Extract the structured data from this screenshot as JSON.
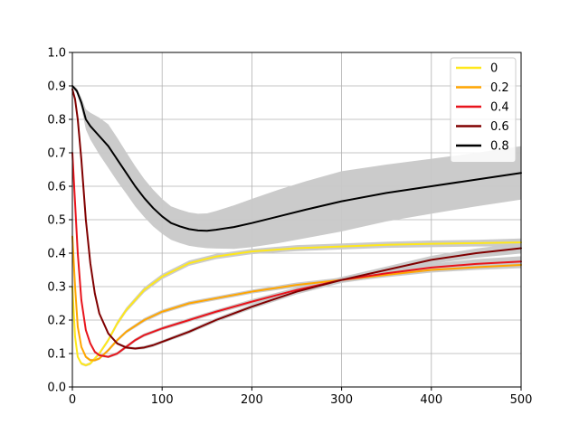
{
  "chart_data": {
    "type": "line",
    "title": "",
    "xlabel": "",
    "ylabel": "",
    "xlim": [
      0,
      500
    ],
    "ylim": [
      0,
      1.0
    ],
    "grid": true,
    "xticks": [
      0,
      100,
      200,
      300,
      400,
      500
    ],
    "xtick_labels": [
      "0",
      "100",
      "200",
      "300",
      "400",
      "500"
    ],
    "yticks": [
      0.0,
      0.1,
      0.2,
      0.3,
      0.4,
      0.5,
      0.6,
      0.7,
      0.8,
      0.9,
      1.0
    ],
    "ytick_labels": [
      "0.0",
      "0.1",
      "0.2",
      "0.3",
      "0.4",
      "0.5",
      "0.6",
      "0.7",
      "0.8",
      "0.9",
      "1.0"
    ],
    "legend_position": "top-right",
    "series": [
      {
        "name": "0",
        "color": "#ffe81a",
        "band": true,
        "x": [
          0,
          3,
          6,
          10,
          15,
          20,
          30,
          40,
          50,
          60,
          80,
          100,
          130,
          160,
          200,
          250,
          300,
          350,
          400,
          450,
          500
        ],
        "y": [
          0.3,
          0.15,
          0.09,
          0.07,
          0.065,
          0.07,
          0.1,
          0.14,
          0.19,
          0.23,
          0.29,
          0.33,
          0.37,
          0.39,
          0.405,
          0.415,
          0.42,
          0.425,
          0.428,
          0.43,
          0.432
        ],
        "band_halfwidth": [
          0.004,
          0.004,
          0.004,
          0.004,
          0.004,
          0.004,
          0.005,
          0.006,
          0.007,
          0.007,
          0.008,
          0.008,
          0.008,
          0.008,
          0.008,
          0.009,
          0.009,
          0.009,
          0.01,
          0.01,
          0.012
        ]
      },
      {
        "name": "0.2",
        "color": "#ffa500",
        "band": true,
        "x": [
          0,
          3,
          6,
          10,
          15,
          20,
          25,
          30,
          40,
          50,
          60,
          80,
          100,
          130,
          160,
          200,
          250,
          300,
          350,
          400,
          450,
          500
        ],
        "y": [
          0.45,
          0.3,
          0.18,
          0.12,
          0.09,
          0.08,
          0.08,
          0.085,
          0.11,
          0.14,
          0.165,
          0.2,
          0.225,
          0.25,
          0.265,
          0.285,
          0.305,
          0.32,
          0.335,
          0.35,
          0.358,
          0.365
        ],
        "band_halfwidth": [
          0.004,
          0.004,
          0.004,
          0.004,
          0.004,
          0.004,
          0.004,
          0.004,
          0.005,
          0.005,
          0.005,
          0.006,
          0.006,
          0.006,
          0.006,
          0.006,
          0.007,
          0.007,
          0.007,
          0.008,
          0.008,
          0.01
        ]
      },
      {
        "name": "0.4",
        "color": "#e8141c",
        "band": true,
        "x": [
          0,
          3,
          6,
          10,
          15,
          20,
          25,
          30,
          40,
          50,
          60,
          70,
          80,
          100,
          130,
          160,
          200,
          250,
          300,
          350,
          400,
          450,
          500
        ],
        "y": [
          0.7,
          0.55,
          0.4,
          0.26,
          0.17,
          0.13,
          0.105,
          0.095,
          0.09,
          0.1,
          0.12,
          0.14,
          0.155,
          0.175,
          0.2,
          0.225,
          0.255,
          0.29,
          0.32,
          0.34,
          0.357,
          0.368,
          0.375
        ],
        "band_halfwidth": [
          0.004,
          0.004,
          0.004,
          0.004,
          0.004,
          0.004,
          0.004,
          0.004,
          0.004,
          0.005,
          0.005,
          0.005,
          0.005,
          0.005,
          0.006,
          0.006,
          0.007,
          0.008,
          0.009,
          0.01,
          0.012,
          0.014,
          0.016
        ]
      },
      {
        "name": "0.6",
        "color": "#800000",
        "band": true,
        "x": [
          0,
          3,
          6,
          10,
          15,
          20,
          25,
          30,
          40,
          50,
          60,
          70,
          80,
          90,
          100,
          130,
          160,
          200,
          250,
          300,
          350,
          400,
          450,
          500
        ],
        "y": [
          0.89,
          0.86,
          0.8,
          0.68,
          0.5,
          0.37,
          0.28,
          0.22,
          0.16,
          0.13,
          0.118,
          0.115,
          0.118,
          0.125,
          0.135,
          0.165,
          0.2,
          0.24,
          0.285,
          0.32,
          0.35,
          0.38,
          0.4,
          0.415
        ],
        "band_halfwidth": [
          0.004,
          0.004,
          0.004,
          0.004,
          0.004,
          0.004,
          0.004,
          0.004,
          0.004,
          0.004,
          0.004,
          0.004,
          0.005,
          0.005,
          0.005,
          0.006,
          0.006,
          0.007,
          0.008,
          0.009,
          0.01,
          0.012,
          0.014,
          0.016
        ]
      },
      {
        "name": "0.8",
        "color": "#000000",
        "band": true,
        "x": [
          0,
          5,
          10,
          15,
          20,
          30,
          40,
          50,
          60,
          70,
          80,
          90,
          100,
          110,
          120,
          130,
          140,
          150,
          160,
          180,
          200,
          230,
          260,
          300,
          350,
          400,
          450,
          500
        ],
        "y": [
          0.9,
          0.885,
          0.85,
          0.8,
          0.78,
          0.75,
          0.72,
          0.68,
          0.64,
          0.6,
          0.565,
          0.535,
          0.51,
          0.49,
          0.48,
          0.472,
          0.468,
          0.467,
          0.47,
          0.478,
          0.49,
          0.51,
          0.53,
          0.555,
          0.58,
          0.6,
          0.62,
          0.64
        ],
        "band_halfwidth": [
          0.004,
          0.008,
          0.015,
          0.03,
          0.04,
          0.055,
          0.065,
          0.065,
          0.062,
          0.06,
          0.057,
          0.055,
          0.052,
          0.05,
          0.05,
          0.05,
          0.05,
          0.052,
          0.056,
          0.065,
          0.072,
          0.08,
          0.085,
          0.09,
          0.085,
          0.082,
          0.08,
          0.08
        ]
      }
    ]
  }
}
